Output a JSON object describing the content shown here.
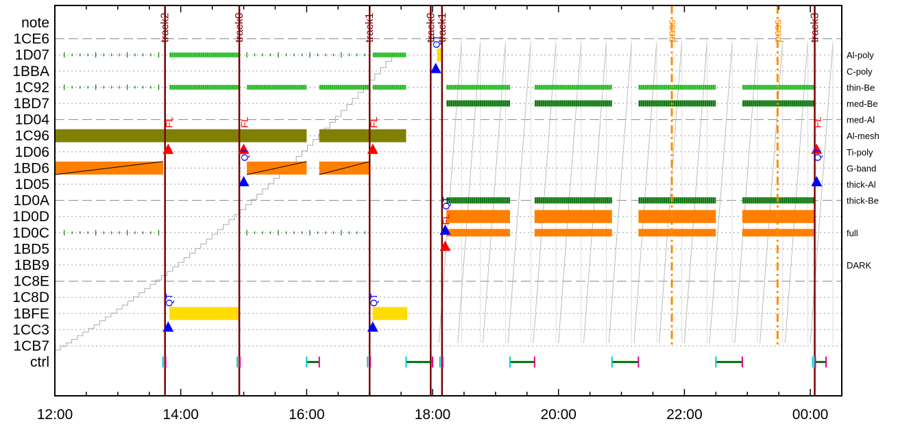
{
  "chart_data": {
    "type": "timeline",
    "x_axis": {
      "range_hours": [
        12.0,
        24.5
      ],
      "tick_labels": [
        "12:00",
        "14:00",
        "16:00",
        "18:00",
        "20:00",
        "22:00",
        "00:00"
      ],
      "tick_hours": [
        12,
        14,
        16,
        18,
        20,
        22,
        24
      ]
    },
    "rows": [
      "note",
      "1CE6",
      "1D07",
      "1BBA",
      "1C92",
      "1BD7",
      "1D04",
      "1C96",
      "1D06",
      "1BD6",
      "1D05",
      "1D0A",
      "1D0D",
      "1D0C",
      "1BD5",
      "1BB9",
      "1C8E",
      "1C8D",
      "1BFE",
      "1CC3",
      "1CB7",
      "ctrl"
    ],
    "right_labels": [
      {
        "row": "1D07",
        "text": "Al-poly"
      },
      {
        "row": "1BBA",
        "text": "C-poly"
      },
      {
        "row": "1C92",
        "text": "thin-Be"
      },
      {
        "row": "1BD7",
        "text": "med-Be"
      },
      {
        "row": "1D04",
        "text": "med-Al"
      },
      {
        "row": "1C96",
        "text": "Al-mesh"
      },
      {
        "row": "1D06",
        "text": "Ti-poly"
      },
      {
        "row": "1BD6",
        "text": "G-band"
      },
      {
        "row": "1D05",
        "text": "thick-Al"
      },
      {
        "row": "1D0A",
        "text": "thick-Be"
      },
      {
        "row": "1D0C",
        "text": "full"
      },
      {
        "row": "1BB9",
        "text": "DARK"
      }
    ],
    "vertical_lines": [
      {
        "x": 13.75,
        "label": "track2",
        "color": "#7a0000",
        "style": "solid"
      },
      {
        "x": 14.93,
        "label": "track0",
        "color": "#7a0000",
        "style": "solid"
      },
      {
        "x": 17.0,
        "label": "track1",
        "color": "#7a0000",
        "style": "solid"
      },
      {
        "x": 17.97,
        "label": "track0",
        "color": "#7a0000",
        "style": "solid"
      },
      {
        "x": 18.15,
        "label": "track1",
        "color": "#7a0000",
        "style": "solid"
      },
      {
        "x": 21.8,
        "label": "pass",
        "color": "#ff8c00",
        "style": "dashdot"
      },
      {
        "x": 23.48,
        "label": "pass",
        "color": "#ff8c00",
        "style": "dashdot"
      },
      {
        "x": 24.07,
        "label": "track3",
        "color": "#7a0000",
        "style": "solid"
      }
    ],
    "bars": [
      {
        "row": "1C96",
        "start": 12.0,
        "end": 13.75,
        "color": "#808000"
      },
      {
        "row": "1C96",
        "start": 13.75,
        "end": 16.0,
        "color": "#808000"
      },
      {
        "row": "1C96",
        "start": 16.2,
        "end": 17.58,
        "color": "#808000"
      },
      {
        "row": "1BD6",
        "start": 12.0,
        "end": 13.72,
        "color": "#ff8000",
        "diag": true
      },
      {
        "row": "1BD6",
        "start": 15.05,
        "end": 16.0,
        "color": "#ff8000",
        "diag": true
      },
      {
        "row": "1BD6",
        "start": 16.2,
        "end": 17.0,
        "color": "#ff8000",
        "diag": true
      },
      {
        "row": "1BFE",
        "start": 13.82,
        "end": 14.93,
        "color": "#ffdd00"
      },
      {
        "row": "1BFE",
        "start": 17.05,
        "end": 17.6,
        "color": "#ffdd00"
      },
      {
        "row": "1D07",
        "start": 18.07,
        "end": 18.15,
        "color": "#ffdd00"
      },
      {
        "row": "1D0D",
        "start": 18.22,
        "end": 19.23,
        "color": "#ff8000"
      },
      {
        "row": "1D0D",
        "start": 19.62,
        "end": 20.85,
        "color": "#ff8000"
      },
      {
        "row": "1D0D",
        "start": 21.27,
        "end": 22.5,
        "color": "#ff8000"
      },
      {
        "row": "1D0D",
        "start": 22.92,
        "end": 24.07,
        "color": "#ff8000"
      },
      {
        "row": "1D0C",
        "start": 18.22,
        "end": 19.23,
        "color": "#ff8000",
        "thin": true
      },
      {
        "row": "1D0C",
        "start": 19.62,
        "end": 20.85,
        "color": "#ff8000",
        "thin": true
      },
      {
        "row": "1D0C",
        "start": 21.27,
        "end": 22.5,
        "color": "#ff8000",
        "thin": true
      },
      {
        "row": "1D0C",
        "start": 22.92,
        "end": 24.07,
        "color": "#ff8000",
        "thin": true
      }
    ],
    "tick_bands": [
      {
        "row": "1D07",
        "start": 13.82,
        "end": 14.93,
        "color": "#00b000"
      },
      {
        "row": "1D07",
        "start": 17.05,
        "end": 17.58,
        "color": "#00b000"
      },
      {
        "row": "1C92",
        "start": 13.82,
        "end": 14.93,
        "color": "#00b000"
      },
      {
        "row": "1C92",
        "start": 15.05,
        "end": 16.0,
        "color": "#00b000"
      },
      {
        "row": "1C92",
        "start": 16.2,
        "end": 17.0,
        "color": "#00b000"
      },
      {
        "row": "1C92",
        "start": 17.05,
        "end": 17.58,
        "color": "#00b000"
      },
      {
        "row": "1C92",
        "start": 18.22,
        "end": 19.23,
        "color": "#00b000"
      },
      {
        "row": "1C92",
        "start": 19.62,
        "end": 20.85,
        "color": "#00b000"
      },
      {
        "row": "1C92",
        "start": 21.27,
        "end": 22.5,
        "color": "#00b000"
      },
      {
        "row": "1C92",
        "start": 22.92,
        "end": 24.07,
        "color": "#00b000"
      },
      {
        "row": "1BD7",
        "start": 18.22,
        "end": 19.23,
        "color": "#007000",
        "thick": true
      },
      {
        "row": "1BD7",
        "start": 19.62,
        "end": 20.85,
        "color": "#007000",
        "thick": true
      },
      {
        "row": "1BD7",
        "start": 21.27,
        "end": 22.5,
        "color": "#007000",
        "thick": true
      },
      {
        "row": "1BD7",
        "start": 22.92,
        "end": 24.07,
        "color": "#007000",
        "thick": true
      },
      {
        "row": "1D0A",
        "start": 18.22,
        "end": 19.23,
        "color": "#007000",
        "thick": true
      },
      {
        "row": "1D0A",
        "start": 19.62,
        "end": 20.85,
        "color": "#007000",
        "thick": true
      },
      {
        "row": "1D0A",
        "start": 21.27,
        "end": 22.5,
        "color": "#007000",
        "thick": true
      },
      {
        "row": "1D0A",
        "start": 22.92,
        "end": 24.07,
        "color": "#007000",
        "thick": true
      }
    ],
    "sparse_ticks": [
      {
        "row": "1D07",
        "start": 12.15,
        "end": 13.7
      },
      {
        "row": "1D07",
        "start": 15.05,
        "end": 16.95
      },
      {
        "row": "1C92",
        "start": 12.15,
        "end": 13.7
      },
      {
        "row": "1D0C",
        "start": 12.15,
        "end": 13.7
      },
      {
        "row": "1D0C",
        "start": 15.05,
        "end": 16.95
      }
    ],
    "markers": [
      {
        "type": "triangle",
        "color": "#ff0000",
        "x": 13.8,
        "row": "1D06",
        "text": "FL",
        "text_row": "1D04"
      },
      {
        "type": "triangle",
        "color": "#ff0000",
        "x": 15.0,
        "row": "1D06",
        "text": "FL",
        "text_row": "1D04"
      },
      {
        "type": "triangle",
        "color": "#ff0000",
        "x": 17.05,
        "row": "1D06",
        "text": "FL",
        "text_row": "1D04"
      },
      {
        "type": "triangle",
        "color": "#ff0000",
        "x": 24.1,
        "row": "1D06",
        "text": "FL",
        "text_row": "1D04"
      },
      {
        "type": "triangle",
        "color": "#ff0000",
        "x": 18.2,
        "row": "1BD5",
        "text": "FL",
        "text_row": "1D0D"
      },
      {
        "type": "triangle",
        "color": "#0000ff",
        "x": 15.0,
        "row": "1D05",
        "text": "QT",
        "text_row": "1D06"
      },
      {
        "type": "triangle",
        "color": "#0000ff",
        "x": 24.1,
        "row": "1D05",
        "text": "QT",
        "text_row": "1D06"
      },
      {
        "type": "triangle",
        "color": "#0000ff",
        "x": 13.8,
        "row": "1CC3",
        "text": "QT",
        "text_row": "1C8D"
      },
      {
        "type": "triangle",
        "color": "#0000ff",
        "x": 17.05,
        "row": "1CC3",
        "text": "QT",
        "text_row": "1C8D"
      },
      {
        "type": "triangle",
        "color": "#0000ff",
        "x": 18.05,
        "row": "1BBA",
        "text": "QT",
        "text_row": "1CE6"
      },
      {
        "type": "triangle",
        "color": "#0000ff",
        "x": 18.2,
        "row": "1D0C",
        "text": "QT",
        "text_row": "1D0A"
      }
    ],
    "ctrl_segments": [
      {
        "start": 16.0,
        "end": 16.2
      },
      {
        "start": 17.58,
        "end": 18.0
      },
      {
        "start": 19.23,
        "end": 19.62
      },
      {
        "start": 20.85,
        "end": 21.27
      },
      {
        "start": 22.5,
        "end": 22.92
      },
      {
        "start": 24.07,
        "end": 24.25
      }
    ],
    "ctrl_marks": [
      13.75,
      14.93,
      17.0,
      18.15,
      24.07
    ],
    "grid": true
  }
}
